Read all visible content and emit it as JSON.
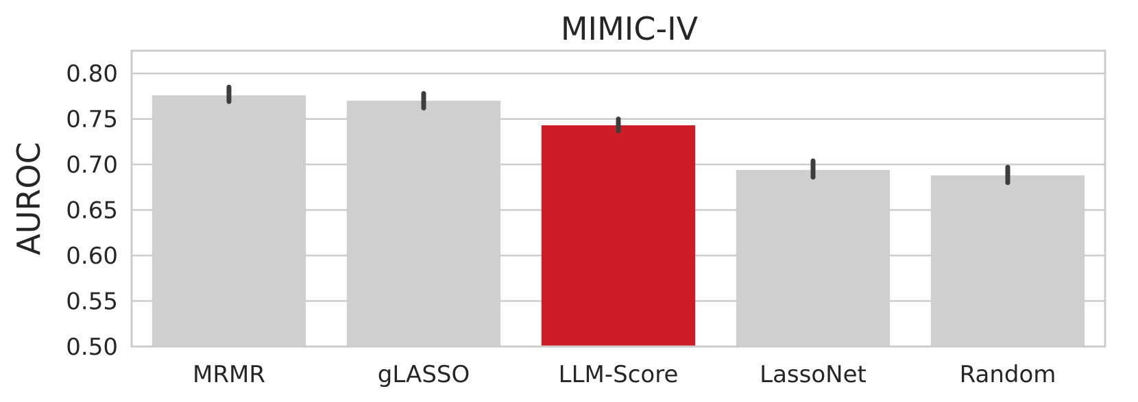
{
  "chart_data": {
    "type": "bar",
    "title": "MIMIC-IV",
    "xlabel": "",
    "ylabel": "AUROC",
    "ylim": [
      0.5,
      0.825
    ],
    "yticks": [
      0.5,
      0.55,
      0.6,
      0.65,
      0.7,
      0.75,
      0.8
    ],
    "ytick_labels": [
      "0.50",
      "0.55",
      "0.60",
      "0.65",
      "0.70",
      "0.75",
      "0.80"
    ],
    "grid": true,
    "categories": [
      "MRMR",
      "gLASSO",
      "LLM-Score",
      "LassoNet",
      "Random"
    ],
    "values": [
      0.776,
      0.77,
      0.743,
      0.694,
      0.688
    ],
    "error_low": [
      0.769,
      0.762,
      0.737,
      0.686,
      0.68
    ],
    "error_high": [
      0.785,
      0.778,
      0.75,
      0.704,
      0.697
    ],
    "colors": [
      "#cfcfcf",
      "#cfcfcf",
      "#cc1c25",
      "#cfcfcf",
      "#cfcfcf"
    ],
    "error_color": "#3d3d3d"
  }
}
